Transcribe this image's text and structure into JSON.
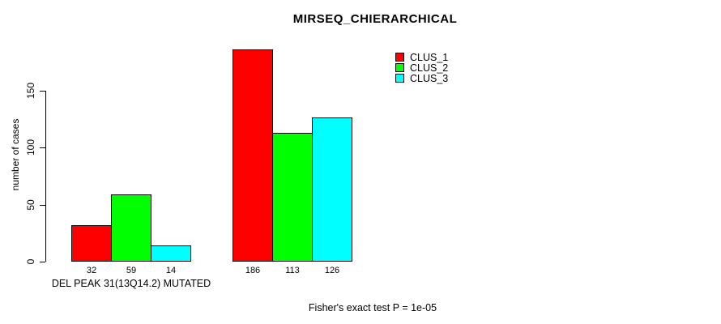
{
  "title": "MIRSEQ_CHIERARCHICAL",
  "footnote": "Fisher's exact test P = 1e-05",
  "chart_data": {
    "type": "bar",
    "title": "MIRSEQ_CHIERARCHICAL",
    "xlabel": "DEL PEAK 31(13Q14.2) MUTATED",
    "ylabel": "number of cases",
    "ylim": [
      0,
      190
    ],
    "yticks": [
      0,
      50,
      100,
      150
    ],
    "grid": false,
    "legend_position": "top-right",
    "series": [
      {
        "name": "CLUS_1",
        "color": "#ff0000",
        "values": [
          32,
          186
        ]
      },
      {
        "name": "CLUS_2",
        "color": "#00ff00",
        "values": [
          59,
          113
        ]
      },
      {
        "name": "CLUS_3",
        "color": "#00ffff",
        "values": [
          14,
          126
        ]
      }
    ],
    "groups": [
      {
        "label": "DEL PEAK 31(13Q14.2) MUTATED",
        "values": [
          32,
          59,
          14
        ]
      },
      {
        "label": "",
        "values": [
          186,
          113,
          126
        ]
      }
    ],
    "bar_value_labels": [
      32,
      59,
      14,
      186,
      113,
      126
    ],
    "footnote": "Fisher's exact test P = 1e-05"
  }
}
